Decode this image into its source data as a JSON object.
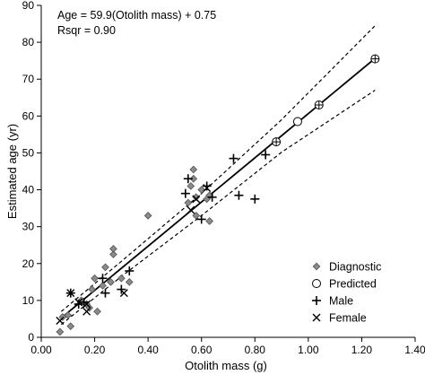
{
  "chart_data": {
    "type": "scatter",
    "xlabel": "Otolith mass (g)",
    "ylabel": "Estimated age (yr)",
    "xlim": [
      0.0,
      1.4
    ],
    "ylim": [
      0,
      90
    ],
    "x_ticks": [
      "0.00",
      "0.20",
      "0.40",
      "0.60",
      "0.80",
      "1.00",
      "1.20",
      "1.40"
    ],
    "y_ticks": [
      "0",
      "10",
      "20",
      "30",
      "40",
      "50",
      "60",
      "70",
      "80",
      "90"
    ],
    "grid": false,
    "legend_position": "bottom-right",
    "annotations": {
      "equation": "Age = 59.9(Otolith mass) + 0.75",
      "rsqr": "Rsqr = 0.90"
    },
    "regression": {
      "name": "",
      "slope": 59.9,
      "intercept": 0.75,
      "x_range": [
        0.075,
        1.25
      ]
    },
    "confidence_band": {
      "upper": [
        [
          0.075,
          7.0
        ],
        [
          0.3,
          20.6
        ],
        [
          0.6,
          39.0
        ],
        [
          0.9,
          59.0
        ],
        [
          1.25,
          84.5
        ]
      ],
      "lower": [
        [
          0.075,
          3.5
        ],
        [
          0.3,
          16.5
        ],
        [
          0.6,
          33.0
        ],
        [
          0.9,
          50.2
        ],
        [
          1.25,
          67.0
        ]
      ]
    },
    "series": [
      {
        "name": "Diagnostic",
        "marker": "diamond",
        "points": [
          [
            0.07,
            1.5
          ],
          [
            0.08,
            5.5
          ],
          [
            0.1,
            6.0
          ],
          [
            0.11,
            3.0
          ],
          [
            0.15,
            10.0
          ],
          [
            0.17,
            9.0
          ],
          [
            0.18,
            8.0
          ],
          [
            0.19,
            13.0
          ],
          [
            0.2,
            16.0
          ],
          [
            0.21,
            7.0
          ],
          [
            0.23,
            14.0
          ],
          [
            0.24,
            19.0
          ],
          [
            0.26,
            15.0
          ],
          [
            0.27,
            22.5
          ],
          [
            0.27,
            24.0
          ],
          [
            0.3,
            16.0
          ],
          [
            0.33,
            15.0
          ],
          [
            0.4,
            33.0
          ],
          [
            0.55,
            36.5
          ],
          [
            0.56,
            41.0
          ],
          [
            0.57,
            43.0
          ],
          [
            0.58,
            38.0
          ],
          [
            0.6,
            40.0
          ],
          [
            0.62,
            37.5
          ],
          [
            0.63,
            38.5
          ],
          [
            0.63,
            31.5
          ],
          [
            0.57,
            45.5
          ],
          [
            0.58,
            33.0
          ]
        ]
      },
      {
        "name": "Predicted",
        "marker": "circle-open",
        "points": [
          [
            0.96,
            58.5
          ]
        ]
      },
      {
        "name": "Male",
        "marker": "plus",
        "points": [
          [
            0.11,
            12.0
          ],
          [
            0.14,
            9.0
          ],
          [
            0.16,
            9.5
          ],
          [
            0.23,
            16.0
          ],
          [
            0.24,
            12.0
          ],
          [
            0.3,
            13.0
          ],
          [
            0.33,
            18.0
          ],
          [
            0.54,
            39.0
          ],
          [
            0.55,
            43.0
          ],
          [
            0.6,
            32.0
          ],
          [
            0.62,
            41.0
          ],
          [
            0.64,
            38.0
          ],
          [
            0.72,
            48.5
          ],
          [
            0.74,
            38.5
          ],
          [
            0.8,
            37.5
          ],
          [
            0.84,
            49.5
          ]
        ]
      },
      {
        "name": "Female",
        "marker": "cross",
        "points": [
          [
            0.07,
            4.5
          ],
          [
            0.11,
            12.0
          ],
          [
            0.14,
            9.5
          ],
          [
            0.17,
            9.0
          ],
          [
            0.17,
            7.0
          ],
          [
            0.31,
            12.0
          ],
          [
            0.56,
            34.5
          ],
          [
            0.58,
            37.5
          ],
          [
            0.62,
            40.5
          ]
        ]
      },
      {
        "name": "",
        "marker": "circle-plus",
        "points": [
          [
            0.88,
            53.0
          ],
          [
            1.04,
            63.0
          ],
          [
            1.25,
            75.5
          ]
        ]
      }
    ],
    "legend": [
      {
        "label": "Diagnostic",
        "marker": "diamond"
      },
      {
        "label": "Predicted",
        "marker": "circle-open"
      },
      {
        "label": "Male",
        "marker": "plus"
      },
      {
        "label": "Female",
        "marker": "cross"
      }
    ],
    "colors": {
      "axis": "#000000",
      "diamond_fill": "#8a8a8a",
      "diamond_stroke": "#555555",
      "line": "#000000"
    }
  }
}
